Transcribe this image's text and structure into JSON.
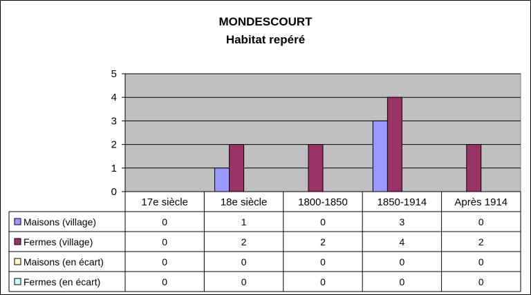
{
  "chart_data": {
    "type": "bar",
    "title": "MONDESCOURT",
    "subtitle": "Habitat repéré",
    "categories": [
      "17e siècle",
      "18e siècle",
      "1800-1850",
      "1850-1914",
      "Après 1914"
    ],
    "ylim": [
      0,
      5
    ],
    "yticks": [
      "0",
      "1",
      "2",
      "3",
      "4",
      "5"
    ],
    "grid": true,
    "plot_background": "#c0c0c0",
    "series": [
      {
        "name": "Maisons (village)",
        "color": "#9999ff",
        "values": [
          0,
          1,
          0,
          3,
          0
        ]
      },
      {
        "name": "Fermes (village)",
        "color": "#993366",
        "values": [
          0,
          2,
          2,
          4,
          2
        ]
      },
      {
        "name": "Maisons (en écart)",
        "color": "#ffffcc",
        "values": [
          0,
          0,
          0,
          0,
          0
        ]
      },
      {
        "name": "Fermes (en écart)",
        "color": "#ccffff",
        "values": [
          0,
          0,
          0,
          0,
          0
        ]
      }
    ]
  }
}
